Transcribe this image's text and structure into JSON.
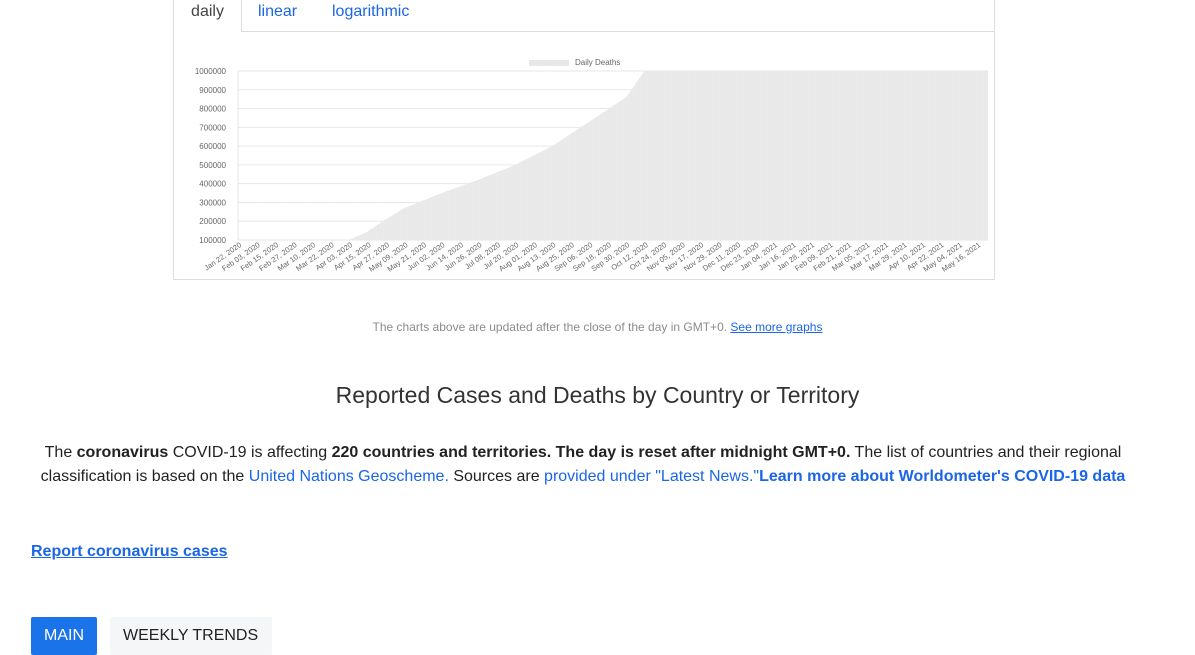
{
  "tabs": [
    {
      "label": "daily"
    },
    {
      "label": "linear"
    },
    {
      "label": "logarithmic"
    }
  ],
  "chart_data": {
    "type": "area",
    "legend": "Daily Deaths",
    "legend_position": "top-center",
    "ylim": [
      100000,
      1000000
    ],
    "y_ticks": [
      "100000",
      "200000",
      "300000",
      "400000",
      "500000",
      "600000",
      "700000",
      "800000",
      "900000",
      "1000000"
    ],
    "x_ticks": [
      "Jan 22, 2020",
      "Feb 03, 2020",
      "Feb 15, 2020",
      "Feb 27, 2020",
      "Mar 10, 2020",
      "Mar 22, 2020",
      "Apr 03, 2020",
      "Apr 15, 2020",
      "Apr 27, 2020",
      "May 09, 2020",
      "May 21, 2020",
      "Jun 02, 2020",
      "Jun 14, 2020",
      "Jun 26, 2020",
      "Jul 08, 2020",
      "Jul 20, 2020",
      "Aug 01, 2020",
      "Aug 13, 2020",
      "Aug 25, 2020",
      "Sep 06, 2020",
      "Sep 18, 2020",
      "Sep 30, 2020",
      "Oct 12, 2020",
      "Oct 24, 2020",
      "Nov 05, 2020",
      "Nov 17, 2020",
      "Nov 29, 2020",
      "Dec 11, 2020",
      "Dec 23, 2020",
      "Jan 04, 2021",
      "Jan 16, 2021",
      "Jan 28, 2021",
      "Feb 09, 2021",
      "Feb 21, 2021",
      "Mar 05, 2021",
      "Mar 17, 2021",
      "Mar 29, 2021",
      "Apr 10, 2021",
      "Apr 22, 2021",
      "May 04, 2021",
      "May 16, 2021"
    ],
    "x": [
      "Jan 22, 2020",
      "Apr 03, 2020",
      "Apr 15, 2020",
      "Apr 27, 2020",
      "May 09, 2020",
      "Jun 02, 2020",
      "Jun 26, 2020",
      "Jul 20, 2020",
      "Aug 13, 2020",
      "Sep 06, 2020",
      "Sep 30, 2020",
      "Oct 12, 2020",
      "May 16, 2021"
    ],
    "values": [
      0,
      90000,
      145000,
      210000,
      270000,
      350000,
      420000,
      500000,
      600000,
      730000,
      860000,
      1000000,
      1000000
    ],
    "fill_color": "#e8e8e8",
    "grid": true
  },
  "note": {
    "text": "The charts above are updated after the close of the day in GMT+0. ",
    "link": "See more graphs"
  },
  "section_title": "Reported Cases and Deaths by Country or Territory",
  "intro": {
    "p1": "The ",
    "b1": "coronavirus",
    "p2": " COVID-19 is affecting ",
    "b2": "220 countries and territories. The day is reset after midnight GMT+0.",
    "p3": " The list of countries and their regional classification is based on the ",
    "link1": "United Nations Geoscheme.",
    "p4": " Sources are ",
    "link2": "provided under \"Latest News.\"",
    "link3": "Learn more about Worldometer's COVID-19 data"
  },
  "report_link": "Report coronavirus cases",
  "buttons": {
    "main": "MAIN",
    "weekly": "WEEKLY TRENDS"
  }
}
